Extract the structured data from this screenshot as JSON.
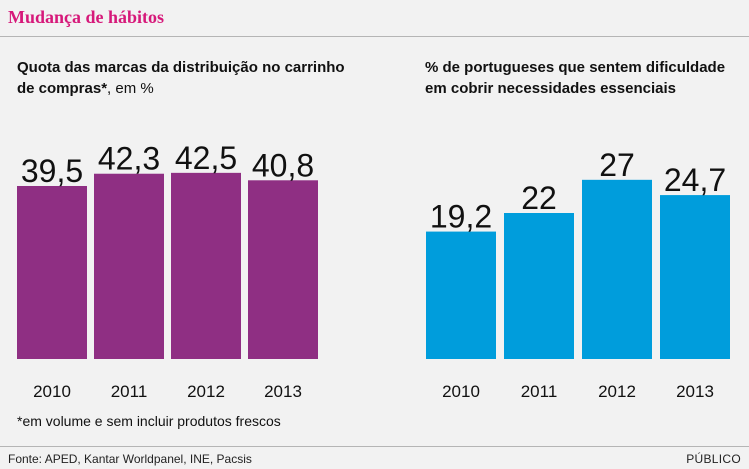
{
  "header": {
    "title": "Mudança de hábitos"
  },
  "colors": {
    "left_bar": "#8f2f83",
    "right_bar": "#009ddc",
    "title": "#d6197a"
  },
  "chart_data": [
    {
      "type": "bar",
      "title_bold": "Quota das marcas da distribuição no carrinho de compras*",
      "title_rest": ", em %",
      "categories": [
        "2010",
        "2011",
        "2012",
        "2013"
      ],
      "values": [
        39.5,
        42.3,
        42.5,
        40.8
      ],
      "labels": [
        "39,5",
        "42,3",
        "42,5",
        "40,8"
      ],
      "ylim": [
        0,
        50
      ]
    },
    {
      "type": "bar",
      "title_bold": "% de portugueses que sentem dificuldade em cobrir necessidades essenciais",
      "title_rest": "",
      "categories": [
        "2010",
        "2011",
        "2012",
        "2013"
      ],
      "values": [
        19.2,
        22,
        27,
        24.7
      ],
      "labels": [
        "19,2",
        "22",
        "27",
        "24,7"
      ],
      "ylim": [
        0,
        33
      ]
    }
  ],
  "footnote": "*em volume e sem incluir produtos frescos",
  "source": "Fonte: APED, Kantar Worldpanel, INE, Pacsis",
  "brand": "PÚBLICO"
}
